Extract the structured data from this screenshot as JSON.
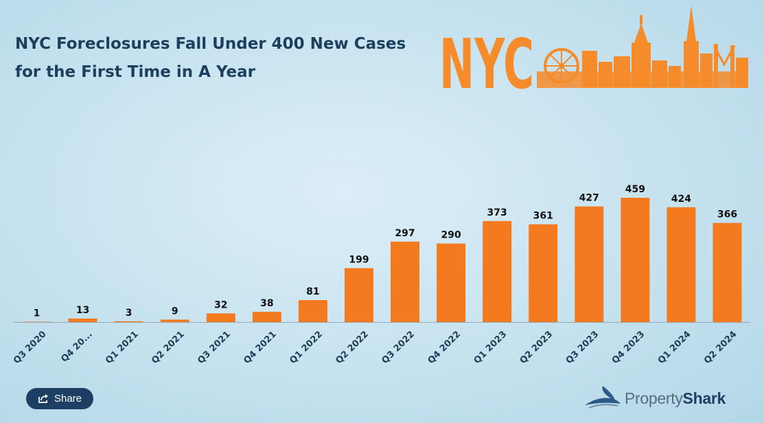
{
  "title_line1": "NYC Foreclosures Fall Under 400 New Cases",
  "title_line2": "for the First Time in A Year",
  "logo": {
    "text": "NYC",
    "color": "#f58b2a"
  },
  "share": {
    "label": "Share",
    "icon": "share-icon"
  },
  "brand": {
    "part1": "Property",
    "part2": "Shark",
    "icon": "shark-fin-icon"
  },
  "colors": {
    "bar": "#f47a1f",
    "label": "#111111",
    "axis": "#9aa8b2",
    "tick": "#1f3b57"
  },
  "chart_data": {
    "type": "bar",
    "title": "NYC Foreclosures Fall Under 400 New Cases for the First Time in A Year",
    "categories": [
      "Q3 2020",
      "Q4 20...",
      "Q1 2021",
      "Q2 2021",
      "Q3 2021",
      "Q4 2021",
      "Q1 2022",
      "Q2 2022",
      "Q3 2022",
      "Q4 2022",
      "Q1 2023",
      "Q2 2023",
      "Q3 2023",
      "Q4 2023",
      "Q1 2024",
      "Q2 2024"
    ],
    "values": [
      1,
      13,
      3,
      9,
      32,
      38,
      81,
      199,
      297,
      290,
      373,
      361,
      427,
      459,
      424,
      366
    ],
    "data_labels": [
      "1",
      "13",
      "3",
      "9",
      "32",
      "38",
      "81",
      "199",
      "297",
      "290",
      "373",
      "361",
      "427",
      "459",
      "424",
      "366"
    ],
    "xlabel": "",
    "ylabel": "",
    "ylim": [
      0,
      459
    ],
    "grid": false,
    "legend": "none"
  }
}
